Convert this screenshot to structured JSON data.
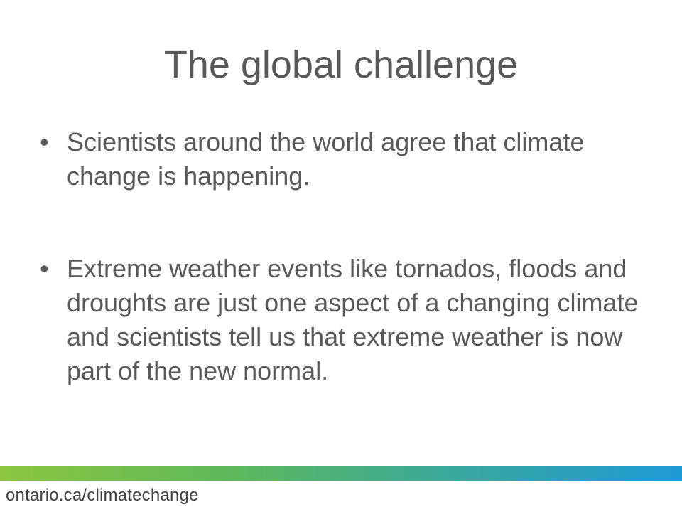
{
  "slide": {
    "title": "The global challenge",
    "bullets": [
      {
        "marker": "•",
        "text": "Scientists around the world agree that climate change is happening."
      },
      {
        "marker": "•",
        "text": "Extreme weather events like tornados, floods and droughts are just one aspect of a changing climate and scientists tell us that extreme weather is now part of the new normal."
      }
    ],
    "footer_url": "ontario.ca/climatechange"
  },
  "colors": {
    "text": "#595959",
    "footer_text": "#404040",
    "gradient_start": "#8cc63e",
    "gradient_end": "#1e9ad6"
  }
}
